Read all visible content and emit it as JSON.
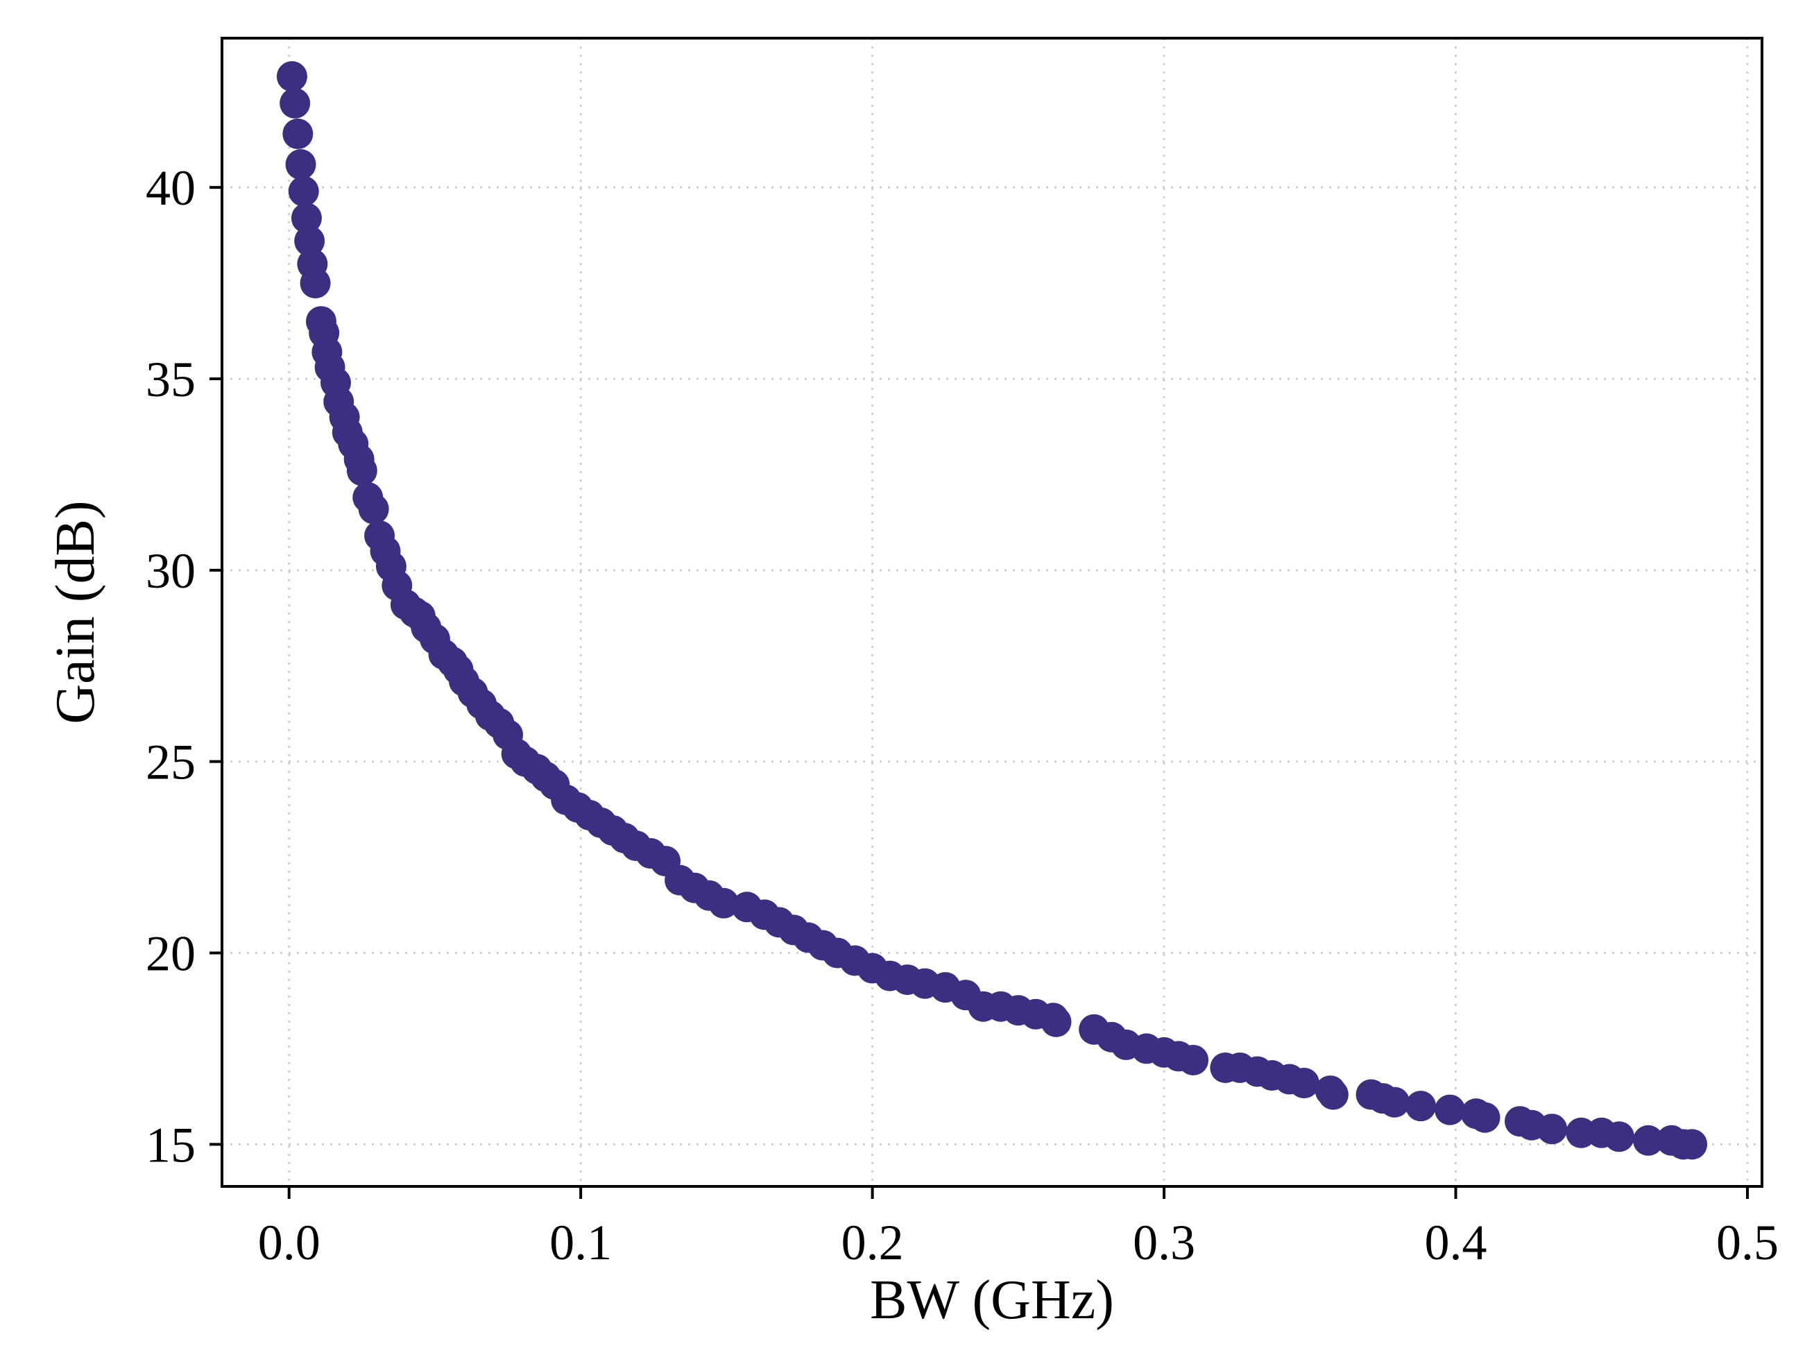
{
  "chart_data": {
    "type": "scatter",
    "title": "",
    "xlabel": "BW (GHz)",
    "ylabel": "Gain (dB)",
    "xlim": [
      -0.023,
      0.505
    ],
    "ylim": [
      13.9,
      43.9
    ],
    "x_ticks": [
      "0.0",
      "0.1",
      "0.2",
      "0.3",
      "0.4",
      "0.5"
    ],
    "y_ticks": [
      "15",
      "20",
      "25",
      "30",
      "35",
      "40"
    ],
    "grid": true,
    "grid_style": "dotted",
    "legend": "none",
    "colors": {
      "marker": "#3b2f82",
      "grid": "#cfcfcf",
      "axes": "#000000"
    },
    "series": [
      {
        "x": [
          0.001,
          0.002,
          0.003,
          0.004,
          0.005,
          0.006,
          0.007,
          0.008,
          0.009,
          0.011,
          0.012,
          0.013,
          0.014,
          0.016,
          0.017,
          0.019,
          0.02,
          0.022,
          0.024,
          0.025,
          0.027,
          0.029,
          0.031,
          0.033,
          0.035,
          0.037,
          0.04,
          0.043,
          0.045,
          0.047,
          0.05,
          0.053,
          0.056,
          0.058,
          0.06,
          0.063,
          0.066,
          0.069,
          0.072,
          0.075,
          0.078,
          0.081,
          0.085,
          0.088,
          0.091,
          0.095,
          0.099,
          0.103,
          0.107,
          0.111,
          0.115,
          0.119,
          0.124,
          0.129,
          0.134,
          0.139,
          0.144,
          0.149,
          0.157,
          0.163,
          0.168,
          0.173,
          0.178,
          0.183,
          0.188,
          0.194,
          0.2,
          0.206,
          0.212,
          0.218,
          0.225,
          0.232,
          0.238,
          0.244,
          0.25,
          0.256,
          0.262,
          0.263,
          0.276,
          0.282,
          0.287,
          0.294,
          0.3,
          0.305,
          0.31,
          0.321,
          0.326,
          0.332,
          0.337,
          0.343,
          0.348,
          0.357,
          0.358,
          0.371,
          0.375,
          0.379,
          0.388,
          0.398,
          0.407,
          0.41,
          0.422,
          0.426,
          0.433,
          0.443,
          0.45,
          0.456,
          0.466,
          0.474,
          0.478,
          0.481
        ],
        "y": [
          42.9,
          42.2,
          41.4,
          40.6,
          39.9,
          39.2,
          38.6,
          38.0,
          37.5,
          36.5,
          36.2,
          35.7,
          35.3,
          34.9,
          34.4,
          34.0,
          33.6,
          33.3,
          32.9,
          32.6,
          31.9,
          31.6,
          30.9,
          30.5,
          30.1,
          29.6,
          29.1,
          28.9,
          28.8,
          28.5,
          28.2,
          27.8,
          27.6,
          27.4,
          27.1,
          26.8,
          26.5,
          26.2,
          26.0,
          25.7,
          25.2,
          25.0,
          24.8,
          24.6,
          24.4,
          24.0,
          23.8,
          23.6,
          23.4,
          23.2,
          23.0,
          22.8,
          22.6,
          22.4,
          21.9,
          21.7,
          21.5,
          21.3,
          21.2,
          21.0,
          20.8,
          20.6,
          20.4,
          20.2,
          20.0,
          19.8,
          19.6,
          19.4,
          19.3,
          19.2,
          19.1,
          18.9,
          18.6,
          18.6,
          18.5,
          18.4,
          18.3,
          18.2,
          18.0,
          17.8,
          17.6,
          17.5,
          17.4,
          17.3,
          17.2,
          17.0,
          17.0,
          16.9,
          16.8,
          16.7,
          16.6,
          16.4,
          16.3,
          16.3,
          16.2,
          16.1,
          16.0,
          15.9,
          15.8,
          15.7,
          15.6,
          15.5,
          15.4,
          15.3,
          15.3,
          15.2,
          15.1,
          15.1,
          15.0,
          15.0
        ]
      }
    ]
  }
}
